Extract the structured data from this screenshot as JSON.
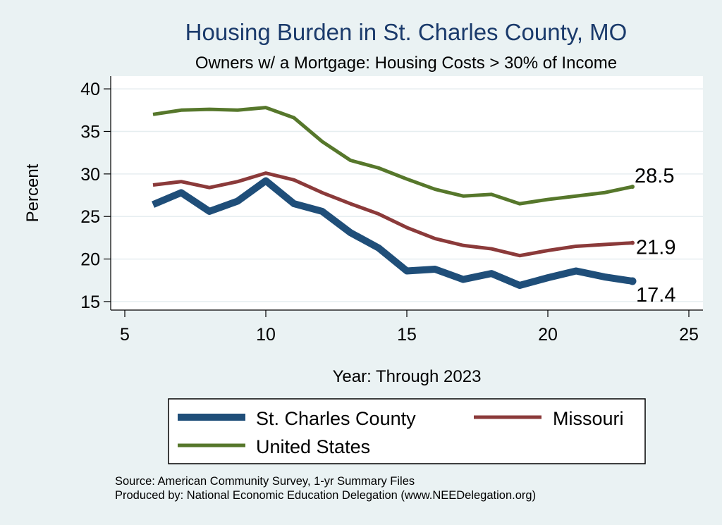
{
  "chart_data": {
    "type": "line",
    "title": "Housing Burden in St. Charles County, MO",
    "subtitle": "Owners w/ a Mortgage: Housing Costs > 30% of Income",
    "xlabel": "Year: Through 2023",
    "ylabel": "Percent",
    "xlim": [
      4.5,
      25.5
    ],
    "ylim": [
      14,
      41.5
    ],
    "xticks": [
      5,
      10,
      15,
      20,
      25
    ],
    "yticks": [
      15,
      20,
      25,
      30,
      35,
      40
    ],
    "grid": true,
    "legend_position": "bottom",
    "x": [
      6,
      7,
      8,
      9,
      10,
      11,
      12,
      13,
      14,
      15,
      16,
      17,
      18,
      19,
      20,
      21,
      22,
      23
    ],
    "series": [
      {
        "name": "St. Charles County",
        "color": "#1f4e79",
        "values": [
          26.4,
          27.8,
          25.6,
          26.8,
          29.2,
          26.5,
          25.6,
          23.1,
          21.3,
          18.6,
          18.8,
          17.6,
          18.3,
          16.9,
          17.8,
          18.6,
          17.9,
          17.4
        ],
        "end_label": "17.4"
      },
      {
        "name": "Missouri",
        "color": "#8b3a3a",
        "values": [
          28.7,
          29.1,
          28.4,
          29.1,
          30.1,
          29.3,
          27.8,
          26.5,
          25.3,
          23.7,
          22.4,
          21.6,
          21.2,
          20.4,
          21.0,
          21.5,
          21.7,
          21.9
        ],
        "end_label": "21.9"
      },
      {
        "name": "United States",
        "color": "#56772b",
        "values": [
          37.0,
          37.5,
          37.6,
          37.5,
          37.8,
          36.6,
          33.8,
          31.6,
          30.7,
          29.4,
          28.2,
          27.4,
          27.6,
          26.5,
          27.0,
          27.4,
          27.8,
          28.5
        ],
        "end_label": "28.5"
      }
    ],
    "notes": [
      "Source: American Community Survey, 1-yr Summary Files",
      "Produced by: National Economic Education Delegation (www.NEEDelegation.org)"
    ]
  }
}
